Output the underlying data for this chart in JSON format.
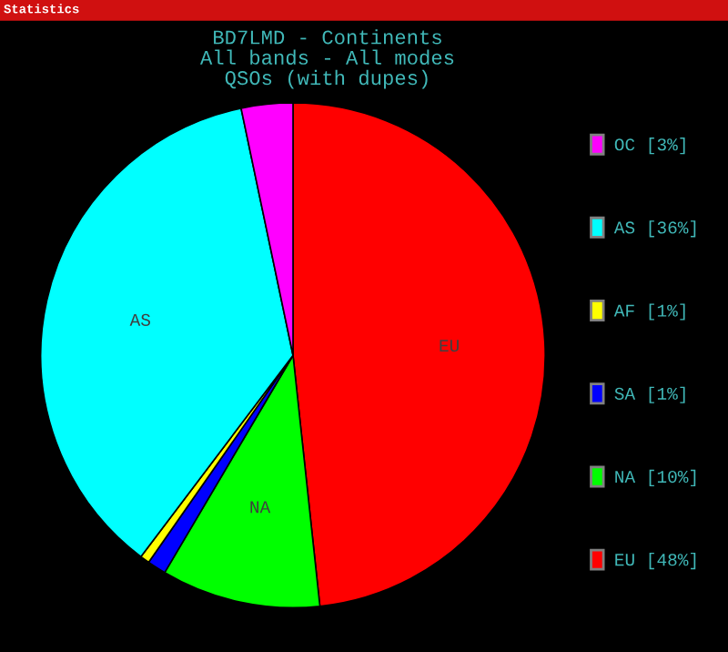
{
  "chart_data": {
    "type": "pie",
    "title": "BD7LMD - Continents\nAll bands - All modes\nQSOs (with dupes)",
    "annotations": [
      "Statistics"
    ],
    "categories": [
      "EU",
      "NA",
      "SA",
      "AF",
      "AS",
      "OC"
    ],
    "values": [
      48.3,
      10.2,
      1.2,
      0.6,
      36.4,
      3.3
    ],
    "value_labels": [
      "[48%]",
      "[10%]",
      "[1%]",
      "[1%]",
      "[36%]",
      "[3%]"
    ],
    "colors": [
      "#ff0000",
      "#00ff00",
      "#0000ff",
      "#ffff00",
      "#00ffff",
      "#ff00ff"
    ],
    "legend": "right"
  }
}
